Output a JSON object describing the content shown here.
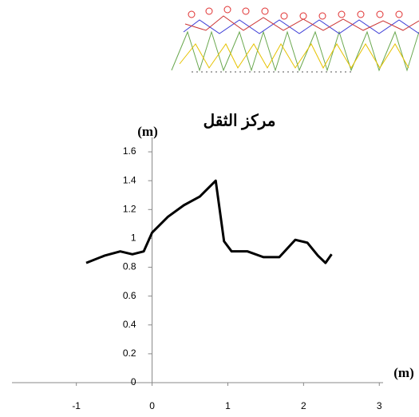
{
  "chart_data": {
    "type": "line",
    "title": "مركز الثقل",
    "x_label": "(m)",
    "y_label": "(m)",
    "x": [
      -0.87,
      -0.63,
      -0.42,
      -0.26,
      -0.11,
      0,
      0.21,
      0.42,
      0.63,
      0.84,
      0.95,
      1.05,
      1.26,
      1.47,
      1.68,
      1.89,
      2.05,
      2.19,
      2.29,
      2.37
    ],
    "series": [
      {
        "color": "#000000",
        "values": [
          0.83,
          0.88,
          0.91,
          0.89,
          0.91,
          1.04,
          1.15,
          1.23,
          1.29,
          1.4,
          0.98,
          0.91,
          0.91,
          0.87,
          0.87,
          0.99,
          0.97,
          0.88,
          0.83,
          0.89
        ]
      }
    ],
    "xlim": [
      -1.85,
      3.05
    ],
    "xticks": [
      -1,
      0,
      1,
      2,
      3
    ],
    "ylim": [
      0,
      1.7
    ],
    "yticks": [
      0,
      0.2,
      0.4,
      0.6,
      0.8,
      1,
      1.2,
      1.4,
      1.6
    ]
  }
}
